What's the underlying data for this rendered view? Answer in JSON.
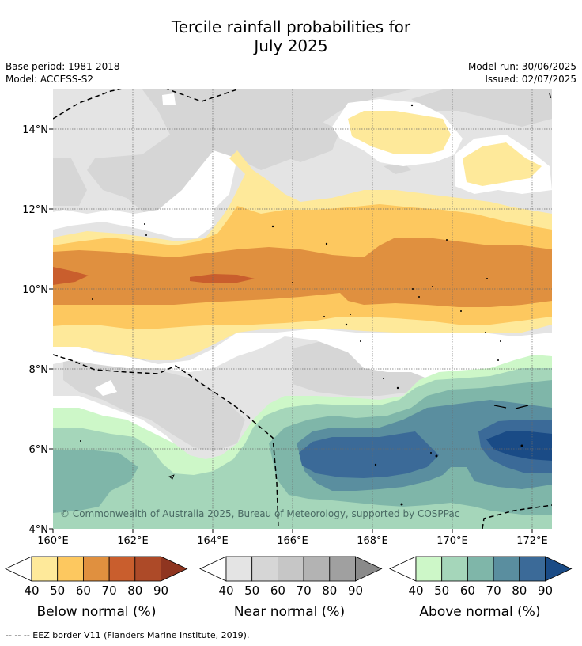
{
  "title_line1": "Tercile rainfall probabilities for",
  "title_line2": "July 2025",
  "base_period": "Base period: 1981-2018",
  "model": "Model: ACCESS-S2",
  "model_run": "Model run: 30/06/2025",
  "issued": "Issued: 02/07/2025",
  "y_ticks": [
    "14°N",
    "12°N",
    "10°N",
    "8°N",
    "6°N",
    "4°N"
  ],
  "x_ticks": [
    "160°E",
    "162°E",
    "164°E",
    "166°E",
    "168°E",
    "170°E",
    "172°E"
  ],
  "copyright": "© Commonwealth of Australia 2025, Bureau of Meteorology, supported by COSPPac",
  "legends": [
    {
      "label": "Below normal (%)",
      "ticks": [
        "40",
        "50",
        "60",
        "70",
        "80",
        "90"
      ],
      "colors": [
        "#fee99a",
        "#fdc85f",
        "#e0903f",
        "#c95e2d",
        "#ad4a28",
        "#8f3520"
      ]
    },
    {
      "label": "Near normal (%)",
      "ticks": [
        "40",
        "50",
        "60",
        "70",
        "80",
        "90"
      ],
      "colors": [
        "#e4e4e4",
        "#d6d6d6",
        "#c6c6c6",
        "#b3b3b3",
        "#a0a0a0",
        "#8a8a8a"
      ]
    },
    {
      "label": "Above normal (%)",
      "ticks": [
        "40",
        "50",
        "60",
        "70",
        "80",
        "90"
      ],
      "colors": [
        "#cdf7c8",
        "#a5d6ba",
        "#7fb6a9",
        "#5a8e9f",
        "#3b6a98",
        "#1a4b86"
      ]
    }
  ],
  "footnote": "--  --  -- EEZ border V11 (Flanders Marine Institute, 2019)."
}
